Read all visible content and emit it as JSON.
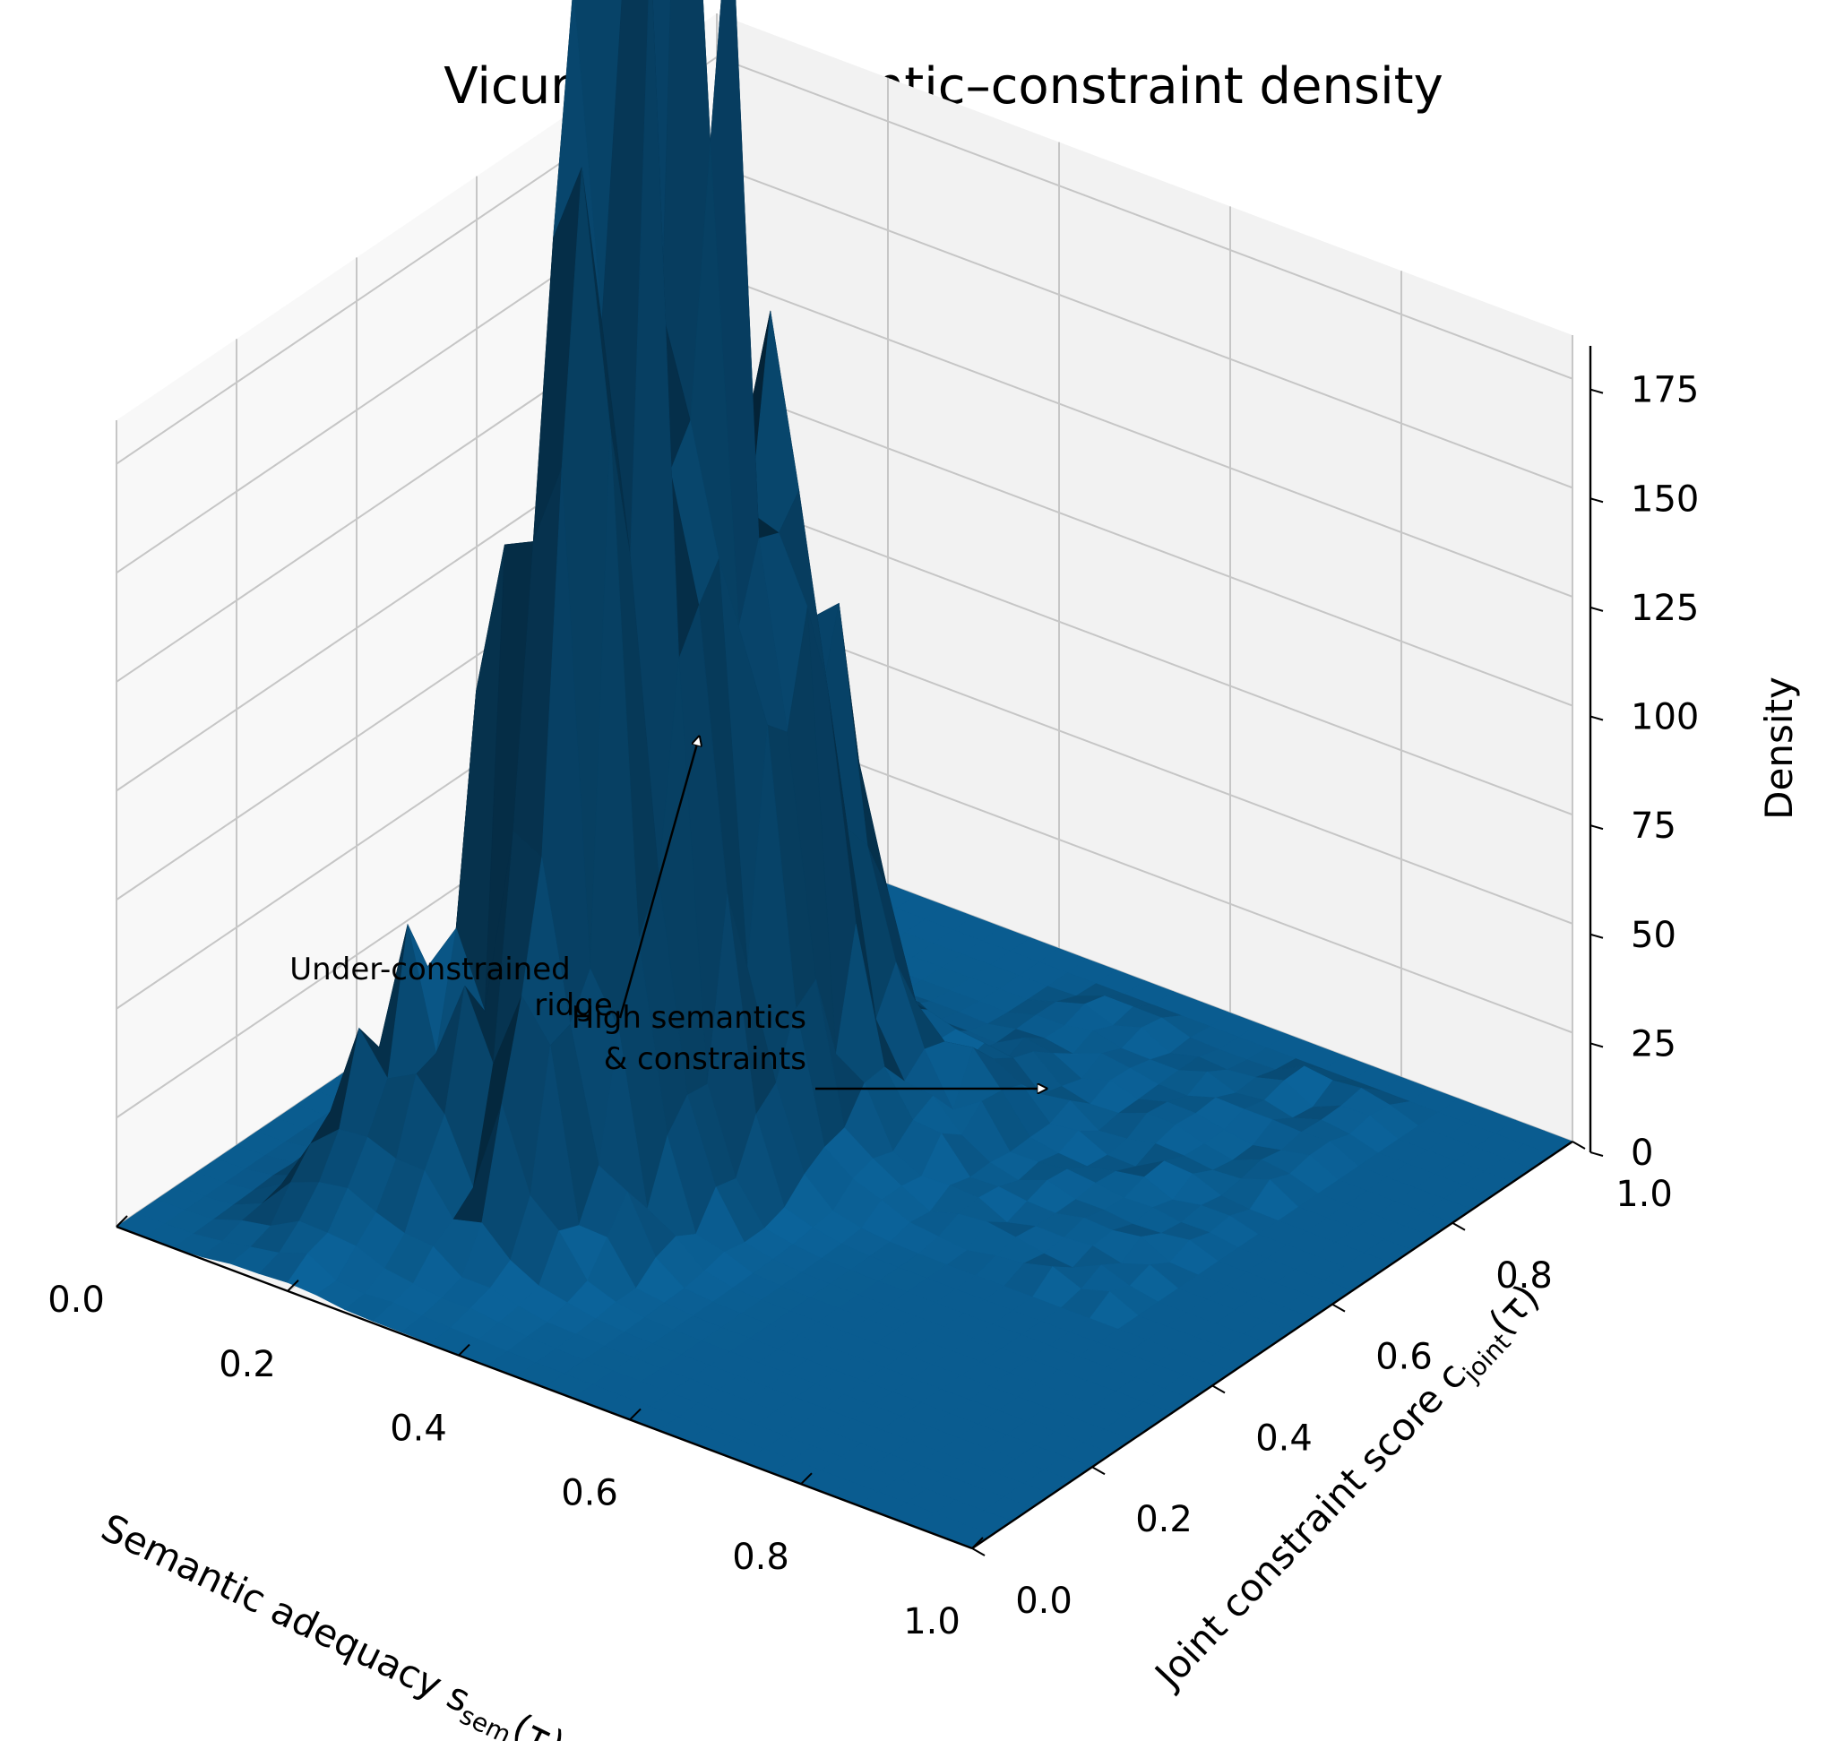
{
  "chart_data": {
    "type": "surface3d",
    "title": "Vicuna-7B: Semantic–constraint density",
    "xlabel": "Semantic adequacy s",
    "xlabel_sub": "sem",
    "xlabel_tail": "(τ)",
    "ylabel": "Joint constraint score c",
    "ylabel_sub": "joint",
    "ylabel_tail": "(τ)",
    "zlabel": "Density",
    "x_ticks": [
      "0.0",
      "0.2",
      "0.4",
      "0.6",
      "0.8",
      "1.0"
    ],
    "y_ticks": [
      "0.0",
      "0.2",
      "0.4",
      "0.6",
      "0.8",
      "1.0"
    ],
    "z_ticks": [
      "0",
      "25",
      "50",
      "75",
      "100",
      "125",
      "150",
      "175"
    ],
    "xlim": [
      0,
      1
    ],
    "ylim": [
      0,
      1
    ],
    "zlim": [
      0,
      185
    ],
    "grid": true,
    "surface_color": "#0a5a8c",
    "peaks": [
      {
        "x": 0.31,
        "y": 0.45,
        "z": 130
      },
      {
        "x": 0.39,
        "y": 0.55,
        "z": 110
      },
      {
        "x": 0.3,
        "y": 0.35,
        "z": 95
      },
      {
        "x": 0.35,
        "y": 0.36,
        "z": 80
      },
      {
        "x": 0.22,
        "y": 0.3,
        "z": 40
      },
      {
        "x": 0.18,
        "y": 0.2,
        "z": 25
      },
      {
        "x": 0.52,
        "y": 0.62,
        "z": 12
      }
    ],
    "annotations": [
      {
        "text_lines": [
          "Under-constrained",
          "ridge"
        ],
        "target": {
          "x": 0.33,
          "y": 0.5,
          "z": 90
        }
      },
      {
        "text_lines": [
          "High semantics",
          "& constraints"
        ],
        "target": {
          "x": 0.56,
          "y": 0.75,
          "z": 3
        }
      }
    ]
  }
}
